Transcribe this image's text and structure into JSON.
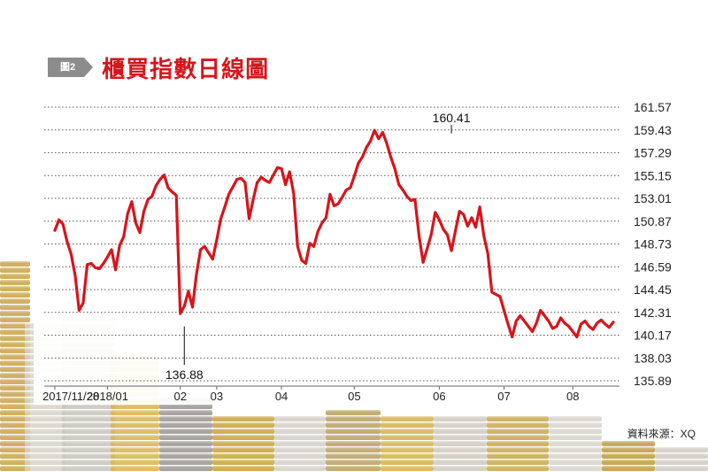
{
  "figure": {
    "badge": "圖2",
    "title": "櫃買指數日線圖",
    "source": "資料來源：XQ"
  },
  "chart_data": {
    "type": "line",
    "title": "櫃買指數日線圖",
    "ylim": [
      135.89,
      161.57
    ],
    "y_ticks": [
      "161.57",
      "159.43",
      "157.29",
      "155.15",
      "153.01",
      "150.87",
      "148.73",
      "146.59",
      "144.45",
      "142.31",
      "140.17",
      "138.03",
      "135.89"
    ],
    "x_ticks": [
      {
        "label": "2017/11/28",
        "x": 0
      },
      {
        "label": "2018/01",
        "x": 13
      },
      {
        "label": "02",
        "x": 31
      },
      {
        "label": "03",
        "x": 40
      },
      {
        "label": "04",
        "x": 56
      },
      {
        "label": "05",
        "x": 74
      },
      {
        "label": "06",
        "x": 95
      },
      {
        "label": "07",
        "x": 111
      },
      {
        "label": "08",
        "x": 128
      }
    ],
    "annotations": [
      {
        "text": "160.41",
        "x": 98,
        "y": 160.41,
        "position": "above"
      },
      {
        "text": "136.88",
        "x": 32,
        "y": 136.88,
        "position": "below"
      }
    ],
    "series": [
      {
        "color": "#d8141b",
        "x": [
          0,
          1,
          2,
          3,
          4,
          5,
          6,
          7,
          8,
          9,
          10,
          11,
          12,
          13,
          14,
          15,
          16,
          17,
          18,
          19,
          20,
          21,
          22,
          23,
          24,
          25,
          26,
          27,
          28,
          29,
          30,
          31,
          32,
          33,
          34,
          35,
          36,
          37,
          38,
          39,
          40,
          41,
          42,
          43,
          44,
          45,
          46,
          47,
          48,
          49,
          50,
          51,
          52,
          53,
          54,
          55,
          56,
          57,
          58,
          59,
          60,
          61,
          62,
          63,
          64,
          65,
          66,
          67,
          68,
          69,
          70,
          71,
          72,
          73,
          74,
          75,
          76,
          77,
          78,
          79,
          80,
          81,
          82,
          83,
          84,
          85,
          86,
          87,
          88,
          89,
          90,
          91,
          92,
          93,
          94,
          95,
          96,
          97,
          98,
          99,
          100,
          101,
          102,
          103,
          104,
          105,
          106,
          107,
          108,
          109,
          110,
          111,
          112,
          113,
          114,
          115,
          116,
          117,
          118,
          119,
          120,
          121,
          122,
          123,
          124,
          125,
          126,
          127,
          128,
          129,
          130,
          131,
          132,
          133,
          134,
          135,
          136,
          137,
          138
        ],
        "values": [
          150.0,
          151.0,
          150.6,
          149.0,
          147.8,
          145.8,
          142.5,
          143.2,
          146.8,
          146.9,
          146.5,
          146.4,
          146.9,
          147.5,
          148.2,
          146.3,
          148.6,
          149.4,
          151.6,
          152.7,
          150.7,
          149.8,
          151.8,
          152.9,
          153.2,
          154.2,
          154.8,
          155.2,
          154.0,
          153.6,
          153.3,
          142.2,
          142.9,
          144.3,
          142.8,
          145.9,
          148.2,
          148.5,
          147.9,
          147.3,
          149.1,
          151.1,
          152.2,
          153.4,
          154.1,
          154.8,
          154.9,
          154.5,
          151.1,
          152.9,
          154.5,
          155.0,
          154.7,
          154.5,
          155.2,
          155.9,
          155.8,
          154.3,
          155.5,
          153.5,
          148.5,
          147.2,
          146.9,
          148.8,
          148.5,
          149.9,
          150.7,
          151.2,
          153.4,
          152.3,
          152.5,
          153.1,
          153.8,
          154.0,
          155.1,
          156.3,
          156.9,
          157.8,
          158.4,
          159.4,
          158.6,
          159.2,
          158.2,
          156.9,
          155.8,
          154.3,
          153.8,
          153.2,
          152.8,
          152.9,
          149.5,
          147.0,
          148.3,
          149.6,
          151.7,
          151.0,
          150.1,
          149.6,
          148.1,
          150.0,
          151.8,
          151.5,
          150.4,
          151.2,
          150.3,
          152.2,
          149.5,
          147.8,
          144.2,
          144.0,
          143.8,
          142.5,
          141.2,
          140.0,
          141.5,
          142.0,
          141.5,
          141.0,
          140.5,
          141.3,
          142.5,
          142.0,
          141.5,
          140.8,
          141.0,
          141.8,
          141.3,
          141.0,
          140.5,
          140.0,
          141.2,
          141.5,
          141.0,
          140.7,
          141.3,
          141.6,
          141.2,
          140.9,
          141.4
        ]
      }
    ]
  }
}
